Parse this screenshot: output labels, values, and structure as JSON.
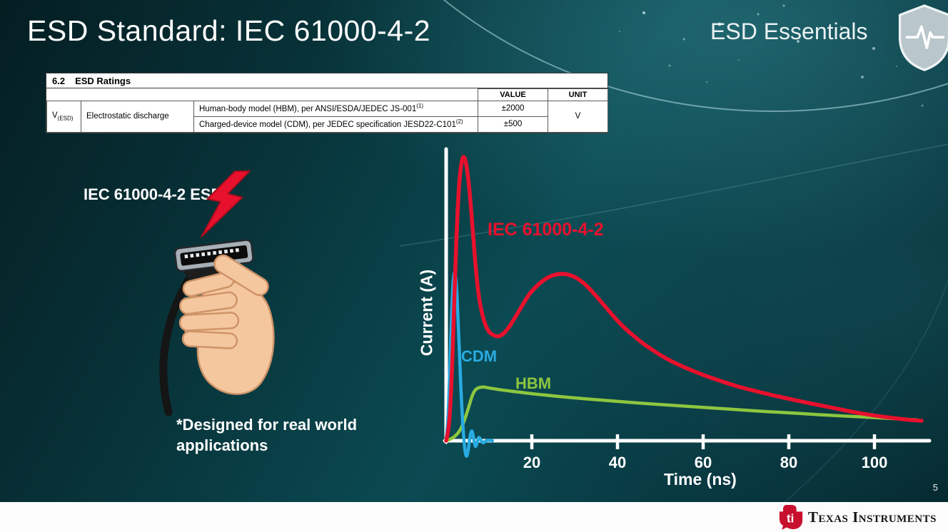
{
  "slide": {
    "title": "ESD Standard: IEC 61000-4-2",
    "brand": "ESD Essentials",
    "page_number": "5",
    "footer_brand": "Texas Instruments"
  },
  "ratings_table": {
    "section_number": "6.2",
    "section_label": "ESD Ratings",
    "headers": {
      "value": "VALUE",
      "unit": "UNIT"
    },
    "param": {
      "symbol": "V",
      "subscript": "(ESD)",
      "name": "Electrostatic discharge"
    },
    "rows": [
      {
        "condition": "Human-body model (HBM), per ANSI/ESDA/JEDEC JS-001",
        "footnote": "(1)",
        "value": "±2000"
      },
      {
        "condition": "Charged-device model (CDM), per JEDEC specification JESD22-C101",
        "footnote": "(2)",
        "value": "±500"
      }
    ],
    "unit": "V"
  },
  "left_panel": {
    "connector_label": "IEC 61000-4-2 ESD",
    "note": "*Designed for real world applications"
  },
  "chart_data": {
    "type": "line",
    "title": "",
    "xlabel": "Time (ns)",
    "ylabel": "Current (A)",
    "x_ticks": [
      20,
      40,
      60,
      80,
      100
    ],
    "xlim": [
      0,
      112
    ],
    "ylim_relative": [
      -0.08,
      1.05
    ],
    "grid": false,
    "legend_position": "inline-labels",
    "axis_color": "#ffffff",
    "series": [
      {
        "name": "IEC 61000-4-2",
        "color": "#e8112d",
        "stroke_width": 5.5,
        "x": [
          0,
          0.5,
          1,
          1.5,
          2,
          2.5,
          3,
          3.5,
          4,
          4.5,
          5,
          5.5,
          6,
          6.5,
          7,
          7.5,
          8,
          9,
          10,
          11,
          12,
          13,
          14,
          15,
          16,
          17,
          18,
          19,
          20,
          22,
          24,
          26,
          28,
          30,
          32,
          34,
          36,
          38,
          40,
          42,
          44,
          46,
          48,
          50,
          53,
          56,
          60,
          64,
          68,
          72,
          76,
          80,
          84,
          88,
          92,
          96,
          100,
          104,
          108,
          111
        ],
        "y": [
          0,
          0.03,
          0.12,
          0.3,
          0.55,
          0.75,
          0.9,
          0.97,
          1.0,
          0.985,
          0.94,
          0.87,
          0.78,
          0.68,
          0.59,
          0.52,
          0.47,
          0.41,
          0.38,
          0.37,
          0.365,
          0.37,
          0.385,
          0.405,
          0.43,
          0.455,
          0.48,
          0.505,
          0.525,
          0.555,
          0.575,
          0.585,
          0.585,
          0.575,
          0.555,
          0.525,
          0.49,
          0.455,
          0.42,
          0.39,
          0.365,
          0.34,
          0.32,
          0.3,
          0.275,
          0.255,
          0.23,
          0.21,
          0.19,
          0.175,
          0.16,
          0.147,
          0.134,
          0.122,
          0.11,
          0.098,
          0.088,
          0.08,
          0.073,
          0.07
        ]
      },
      {
        "name": "CDM",
        "color": "#29abe2",
        "stroke_width": 4.5,
        "x": [
          0,
          0.4,
          0.8,
          1.2,
          1.6,
          2,
          2.4,
          2.8,
          3.2,
          3.6,
          4,
          4.4,
          4.8,
          5.2,
          5.6,
          6,
          6.4,
          6.8,
          7.2,
          7.6,
          8,
          8.6,
          9.2,
          10,
          10.8
        ],
        "y": [
          0,
          0.06,
          0.22,
          0.42,
          0.56,
          0.6,
          0.55,
          0.42,
          0.27,
          0.13,
          0.03,
          -0.04,
          -0.06,
          -0.03,
          0.02,
          0.04,
          0.01,
          -0.025,
          -0.01,
          0.015,
          0.005,
          -0.01,
          0,
          0.002,
          0
        ]
      },
      {
        "name": "HBM",
        "color": "#8dc63f",
        "stroke_width": 4.5,
        "x": [
          0,
          1,
          2,
          3,
          4,
          5,
          5.5,
          6,
          6.5,
          7,
          8,
          9,
          10,
          12,
          14,
          16,
          20,
          25,
          30,
          35,
          40,
          45,
          50,
          55,
          60,
          65,
          70,
          75,
          80,
          85,
          90,
          95,
          100,
          105,
          110
        ],
        "y": [
          0,
          0.005,
          0.015,
          0.03,
          0.06,
          0.105,
          0.13,
          0.155,
          0.172,
          0.182,
          0.188,
          0.188,
          0.185,
          0.18,
          0.176,
          0.172,
          0.165,
          0.157,
          0.15,
          0.144,
          0.138,
          0.132,
          0.127,
          0.122,
          0.117,
          0.112,
          0.107,
          0.102,
          0.098,
          0.093,
          0.089,
          0.085,
          0.081,
          0.077,
          0.073
        ]
      }
    ]
  }
}
